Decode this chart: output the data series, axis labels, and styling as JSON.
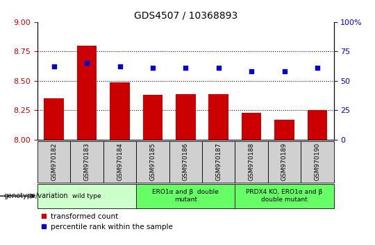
{
  "title": "GDS4507 / 10368893",
  "samples": [
    "GSM970182",
    "GSM970183",
    "GSM970184",
    "GSM970185",
    "GSM970186",
    "GSM970187",
    "GSM970188",
    "GSM970189",
    "GSM970190"
  ],
  "bar_values": [
    8.35,
    8.8,
    8.49,
    8.38,
    8.39,
    8.39,
    8.23,
    8.17,
    8.25
  ],
  "scatter_values": [
    62,
    65,
    62,
    61,
    61,
    61,
    58,
    58,
    61
  ],
  "bar_color": "#cc0000",
  "scatter_color": "#0000cc",
  "ylim_left": [
    8.0,
    9.0
  ],
  "ylim_right": [
    0,
    100
  ],
  "yticks_left": [
    8.0,
    8.25,
    8.5,
    8.75,
    9.0
  ],
  "yticks_right": [
    0,
    25,
    50,
    75,
    100
  ],
  "group_configs": [
    {
      "label": "wild type",
      "indices": [
        0,
        1,
        2
      ],
      "color": "#ccffcc"
    },
    {
      "label": "ERO1α and β  double\nmutant",
      "indices": [
        3,
        4,
        5
      ],
      "color": "#66ff66"
    },
    {
      "label": "PRDX4 KO, ERO1α and β\ndouble mutant",
      "indices": [
        6,
        7,
        8
      ],
      "color": "#66ff66"
    }
  ],
  "group_header": "genotype/variation",
  "legend_bar_label": "transformed count",
  "legend_scatter_label": "percentile rank within the sample",
  "bar_width": 0.6,
  "scatter_size": 25
}
